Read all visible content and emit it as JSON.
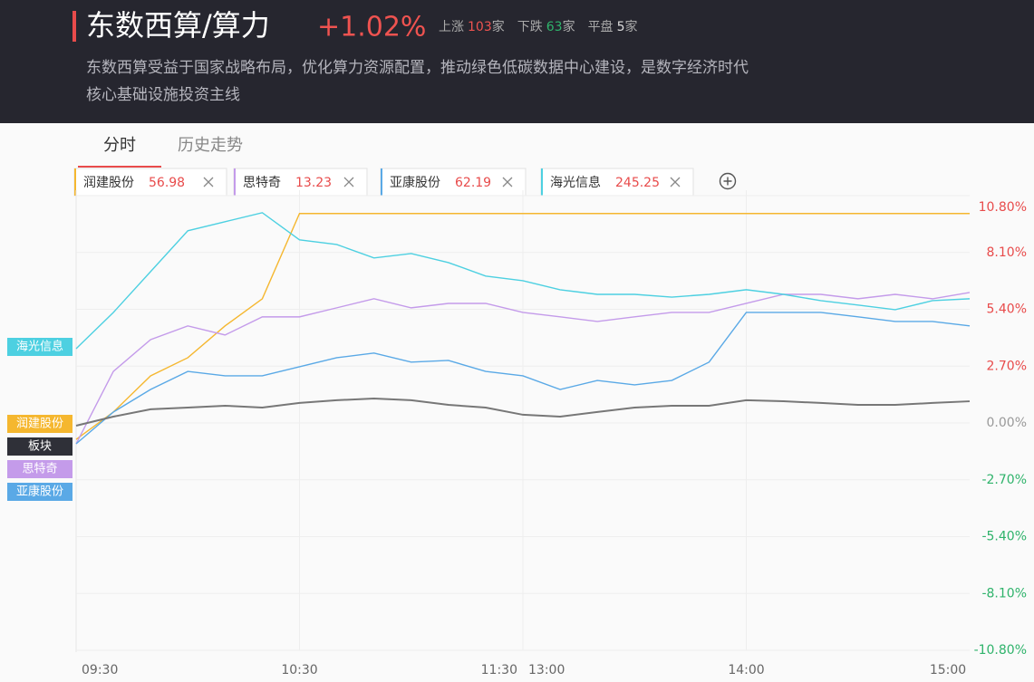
{
  "header": {
    "title": "东数西算/算力",
    "change": "+1.02%",
    "stats": [
      {
        "label": "上涨",
        "count": 103
      },
      {
        "label": "下跌",
        "count": 63
      },
      {
        "label": "平盘",
        "count": 5
      }
    ],
    "unit": "家",
    "description": [
      "东数西算受益于国家战略布局，优化算力资源配置，推动绿色低碳数据中心建设，是数字经济时代",
      "核心基础设施投资主线"
    ]
  },
  "tabs": [
    "分时",
    "历史走势"
  ],
  "chips": [
    {
      "name": "润建股份",
      "price": 56.98,
      "color": "#f5b72f"
    },
    {
      "name": "思特奇",
      "price": 13.23,
      "color": "#c49bea"
    },
    {
      "name": "亚康股份",
      "price": 62.19,
      "color": "#5aa9e6"
    },
    {
      "name": "海光信息",
      "price": 245.25,
      "color": "#4dd0e1"
    }
  ],
  "chart_data": {
    "type": "line",
    "categories": [
      "09:30",
      null,
      null,
      null,
      null,
      null,
      "10:30",
      null,
      null,
      null,
      null,
      null,
      "11:30",
      null,
      null,
      null,
      null,
      null,
      "14:00",
      null,
      null,
      null,
      null,
      null,
      "15:00"
    ],
    "break_label": "13:00",
    "series": [
      {
        "name": "润建股份",
        "color": "#f5b72f",
        "values": [
          -0.78,
          0.52,
          2.24,
          3.1,
          4.61,
          5.9,
          9.95,
          9.95,
          9.95,
          9.95,
          9.95,
          9.95,
          9.95,
          9.95,
          9.95,
          9.95,
          9.95,
          9.95,
          9.95,
          9.95,
          9.95,
          9.95,
          9.95,
          9.95,
          9.95
        ]
      },
      {
        "name": "思特奇",
        "color": "#c49bea",
        "values": [
          -0.99,
          2.45,
          3.96,
          4.61,
          4.18,
          5.04,
          5.04,
          5.47,
          5.9,
          5.47,
          5.68,
          5.68,
          5.25,
          5.04,
          4.82,
          5.04,
          5.25,
          5.25,
          5.68,
          6.11,
          6.11,
          5.9,
          6.11,
          5.9,
          6.2
        ]
      },
      {
        "name": "亚康股份",
        "color": "#5aa9e6",
        "values": [
          -0.99,
          0.52,
          1.59,
          2.45,
          2.24,
          2.24,
          2.67,
          3.1,
          3.32,
          2.89,
          2.97,
          2.45,
          2.24,
          1.59,
          2.02,
          1.81,
          2.02,
          2.89,
          5.25,
          5.25,
          5.25,
          5.04,
          4.82,
          4.82,
          4.61
        ]
      },
      {
        "name": "海光信息",
        "color": "#4dd0e1",
        "values": [
          3.53,
          5.25,
          7.19,
          9.13,
          9.56,
          9.99,
          8.7,
          8.48,
          7.84,
          8.05,
          7.62,
          6.98,
          6.76,
          6.33,
          6.11,
          6.11,
          5.98,
          6.11,
          6.33,
          6.11,
          5.81,
          5.6,
          5.38,
          5.81,
          5.9
        ]
      },
      {
        "name": "板块",
        "color": "#777777",
        "values": [
          -0.13,
          0.3,
          0.65,
          0.73,
          0.82,
          0.73,
          0.95,
          1.08,
          1.16,
          1.08,
          0.86,
          0.73,
          0.39,
          0.3,
          0.52,
          0.73,
          0.82,
          0.82,
          1.08,
          1.03,
          0.95,
          0.86,
          0.86,
          0.95,
          1.03
        ]
      }
    ],
    "ylim": [
      -10.8,
      10.8
    ],
    "yticks": [
      {
        "value": 10.8,
        "label": "10.80%"
      },
      {
        "value": 8.1,
        "label": "8.10%"
      },
      {
        "value": 5.4,
        "label": "5.40%"
      },
      {
        "value": 2.7,
        "label": "2.70%"
      },
      {
        "value": 0,
        "label": "0.00%"
      },
      {
        "value": -2.7,
        "label": "-2.70%"
      },
      {
        "value": -5.4,
        "label": "-5.40%"
      },
      {
        "value": -8.1,
        "label": "-8.10%"
      },
      {
        "value": -10.8,
        "label": "-10.80%"
      }
    ],
    "grid": true
  }
}
